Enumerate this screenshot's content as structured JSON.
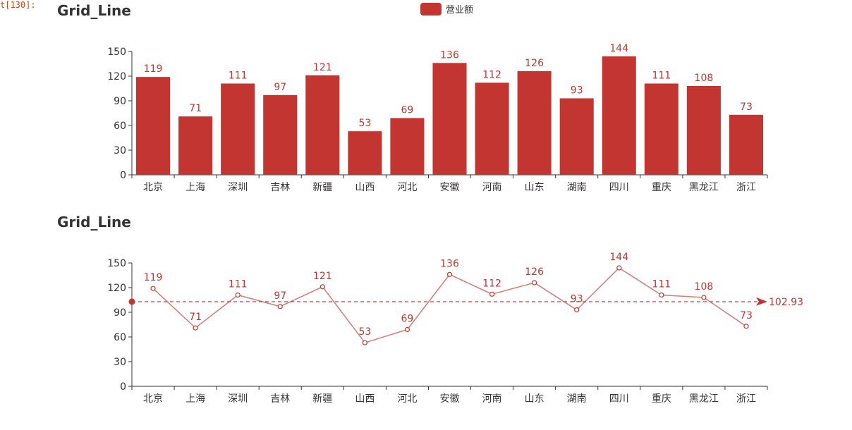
{
  "notebook": {
    "prompt_label": "t[130]:"
  },
  "legend": {
    "label": "营业额",
    "color": "#c23531"
  },
  "chart_data": [
    {
      "type": "bar",
      "title": "Grid_Line",
      "categories": [
        "北京",
        "上海",
        "深圳",
        "吉林",
        "新疆",
        "山西",
        "河北",
        "安徽",
        "河南",
        "山东",
        "湖南",
        "四川",
        "重庆",
        "黑龙江",
        "浙江"
      ],
      "series": [
        {
          "name": "营业额",
          "values": [
            119,
            71,
            111,
            97,
            121,
            53,
            69,
            136,
            112,
            126,
            93,
            144,
            111,
            108,
            73
          ]
        }
      ],
      "yticks": [
        0,
        30,
        60,
        90,
        120,
        150
      ],
      "ylim": [
        0,
        150
      ],
      "color": "#c23531",
      "legend": "top-center",
      "grid": false
    },
    {
      "type": "line",
      "title": "Grid_Line",
      "categories": [
        "北京",
        "上海",
        "深圳",
        "吉林",
        "新疆",
        "山西",
        "河北",
        "安徽",
        "河南",
        "山东",
        "湖南",
        "四川",
        "重庆",
        "黑龙江",
        "浙江"
      ],
      "series": [
        {
          "name": "营业额",
          "values": [
            119,
            71,
            111,
            97,
            121,
            53,
            69,
            136,
            112,
            126,
            93,
            144,
            111,
            108,
            73
          ]
        }
      ],
      "yticks": [
        0,
        30,
        60,
        90,
        120,
        150
      ],
      "ylim": [
        0,
        150
      ],
      "mark_line": {
        "type": "average",
        "value": 102.93,
        "label": "102.93"
      },
      "color": "#c23531",
      "grid": false
    }
  ]
}
